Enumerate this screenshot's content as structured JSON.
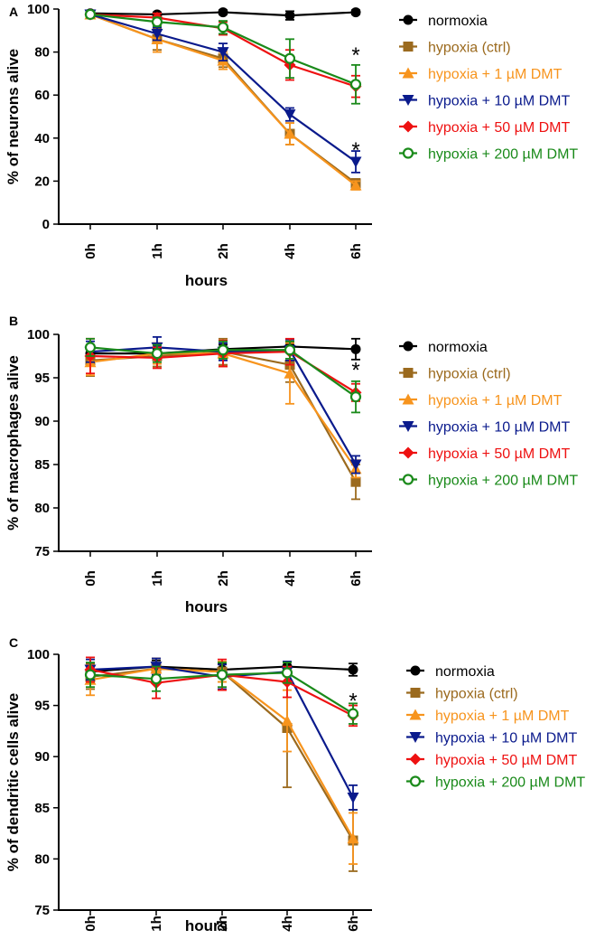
{
  "legend": [
    {
      "label": "normoxia",
      "color": "#000000",
      "marker": "circle"
    },
    {
      "label": "hypoxia (ctrl)",
      "color": "#9B6A1E",
      "marker": "square"
    },
    {
      "label": "hypoxia + 1 µM DMT",
      "color": "#F7941D",
      "marker": "triangle-up"
    },
    {
      "label": "hypoxia + 10 µM DMT",
      "color": "#0A1A8C",
      "marker": "triangle-down"
    },
    {
      "label": "hypoxia + 50 µM DMT",
      "color": "#EE1111",
      "marker": "diamond"
    },
    {
      "label": "hypoxia + 200 µM DMT",
      "color": "#1A8A1A",
      "marker": "open-circle"
    }
  ],
  "chart_data": [
    {
      "type": "line",
      "panel": "A",
      "xlabel": "hours",
      "ylabel": "% of neurons alive",
      "categories": [
        "0h",
        "1h",
        "2h",
        "4h",
        "6h"
      ],
      "ylim": [
        0,
        100
      ],
      "yticks": [
        0,
        20,
        40,
        60,
        80,
        100
      ],
      "annotations": [
        {
          "text": "*",
          "category": "6h",
          "y": 81
        },
        {
          "text": "*",
          "category": "6h",
          "y": 37
        }
      ],
      "series": [
        {
          "name": "normoxia",
          "values": [
            98,
            97.5,
            98.5,
            97,
            98.5
          ],
          "errors": [
            1,
            1,
            1,
            2,
            1
          ]
        },
        {
          "name": "hypoxia (ctrl)",
          "values": [
            97.5,
            86,
            77,
            42,
            19
          ],
          "errors": [
            1.5,
            5,
            4,
            5,
            2
          ]
        },
        {
          "name": "hypoxia + 1 µM DMT",
          "values": [
            97.5,
            86,
            76,
            42,
            18
          ],
          "errors": [
            1.5,
            6,
            4,
            5,
            2
          ]
        },
        {
          "name": "hypoxia + 10 µM DMT",
          "values": [
            97.5,
            88.5,
            80,
            51,
            29
          ],
          "errors": [
            1.5,
            3,
            4,
            3,
            5
          ]
        },
        {
          "name": "hypoxia + 50 µM DMT",
          "values": [
            97.5,
            96,
            91,
            74,
            64
          ],
          "errors": [
            1.5,
            2,
            3,
            7,
            5
          ]
        },
        {
          "name": "hypoxia + 200 µM DMT",
          "values": [
            97.5,
            94,
            91.5,
            77,
            65
          ],
          "errors": [
            1.5,
            2,
            3,
            9,
            9
          ]
        }
      ]
    },
    {
      "type": "line",
      "panel": "B",
      "xlabel": "hours",
      "ylabel": "% of macrophages alive",
      "categories": [
        "0h",
        "1h",
        "2h",
        "4h",
        "6h"
      ],
      "ylim": [
        75,
        100
      ],
      "yticks": [
        75,
        80,
        85,
        90,
        95,
        100
      ],
      "annotations": [
        {
          "text": "*",
          "category": "6h",
          "y": 96.5
        }
      ],
      "series": [
        {
          "name": "normoxia",
          "values": [
            97.8,
            97.8,
            98.3,
            98.6,
            98.3
          ],
          "errors": [
            0.7,
            0.5,
            0.5,
            0.5,
            1.2
          ]
        },
        {
          "name": "hypoxia (ctrl)",
          "values": [
            97.0,
            97.5,
            98.0,
            96.5,
            83.0
          ],
          "errors": [
            1.8,
            1.2,
            1.5,
            2.0,
            2.0
          ]
        },
        {
          "name": "hypoxia + 1 µM DMT",
          "values": [
            96.8,
            97.8,
            97.8,
            95.5,
            84.5
          ],
          "errors": [
            1.5,
            1.2,
            1.5,
            3.5,
            1.0
          ]
        },
        {
          "name": "hypoxia + 10 µM DMT",
          "values": [
            98.0,
            98.5,
            98.0,
            98.2,
            85.0
          ],
          "errors": [
            1.2,
            1.2,
            1.0,
            1.2,
            1.0
          ]
        },
        {
          "name": "hypoxia + 50 µM DMT",
          "values": [
            97.5,
            97.3,
            97.8,
            98.0,
            93.3
          ],
          "errors": [
            2.0,
            1.2,
            1.5,
            1.5,
            1.0
          ]
        },
        {
          "name": "hypoxia + 200 µM DMT",
          "values": [
            98.5,
            97.8,
            98.2,
            98.2,
            92.8
          ],
          "errors": [
            1.0,
            1.0,
            1.0,
            1.0,
            1.8
          ]
        }
      ]
    },
    {
      "type": "line",
      "panel": "C",
      "xlabel": "hours",
      "ylabel": "% of dendritic cells alive",
      "categories": [
        "0h",
        "1h",
        "2h",
        "4h",
        "6h"
      ],
      "ylim": [
        75,
        100
      ],
      "yticks": [
        75,
        80,
        85,
        90,
        95,
        100
      ],
      "annotations": [
        {
          "text": "*",
          "category": "6h",
          "y": 96
        }
      ],
      "series": [
        {
          "name": "normoxia",
          "values": [
            98.3,
            98.8,
            98.5,
            98.8,
            98.5
          ],
          "errors": [
            0.8,
            0.6,
            0.6,
            0.5,
            0.6
          ]
        },
        {
          "name": "hypoxia (ctrl)",
          "values": [
            97.8,
            98.6,
            98.3,
            92.8,
            81.8
          ],
          "errors": [
            1.2,
            1.0,
            1.0,
            5.8,
            3.0
          ]
        },
        {
          "name": "hypoxia + 1 µM DMT",
          "values": [
            97.5,
            98.6,
            98.3,
            93.5,
            82.0
          ],
          "errors": [
            1.5,
            1.0,
            1.0,
            3.0,
            2.5
          ]
        },
        {
          "name": "hypoxia + 10 µM DMT",
          "values": [
            98.5,
            98.8,
            97.8,
            98.3,
            86.0
          ],
          "errors": [
            1.0,
            0.8,
            1.2,
            1.0,
            1.2
          ]
        },
        {
          "name": "hypoxia + 50 µM DMT",
          "values": [
            98.5,
            97.2,
            98.0,
            97.3,
            94.0
          ],
          "errors": [
            1.2,
            1.5,
            1.5,
            1.5,
            1.0
          ]
        },
        {
          "name": "hypoxia + 200 µM DMT",
          "values": [
            98.0,
            97.6,
            98.0,
            98.2,
            94.2
          ],
          "errors": [
            1.2,
            1.2,
            1.2,
            1.0,
            1.0
          ]
        }
      ]
    }
  ]
}
